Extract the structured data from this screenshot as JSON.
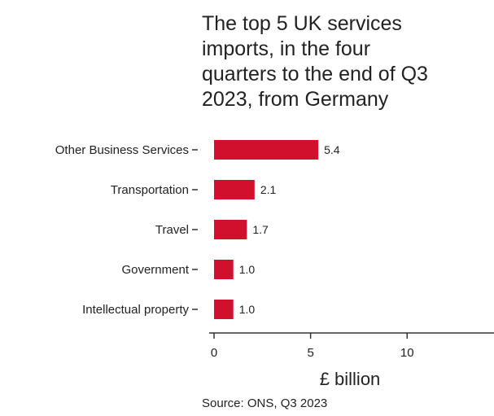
{
  "title_lines": [
    "The top 5 UK services",
    "imports, in the four",
    "quarters to the end of Q3",
    "2023, from Germany"
  ],
  "source": "Source: ONS, Q3 2023",
  "chart_data": {
    "type": "bar",
    "orientation": "horizontal",
    "title": "The top 5 UK services imports, in the four quarters to the end of Q3 2023, from Germany",
    "categories": [
      "Other Business Services",
      "Transportation",
      "Travel",
      "Government",
      "Intellectual property"
    ],
    "values": [
      5.4,
      2.1,
      1.7,
      1.0,
      1.0
    ],
    "value_labels": [
      "5.4",
      "2.1",
      "1.7",
      "1.0",
      "1.0"
    ],
    "xlabel": "£ billion",
    "ylabel": "",
    "xlim": [
      0,
      14.5
    ],
    "xticks": [
      0,
      5,
      10
    ],
    "grid": false,
    "legend": "none",
    "bar_color": "#d0102c"
  }
}
